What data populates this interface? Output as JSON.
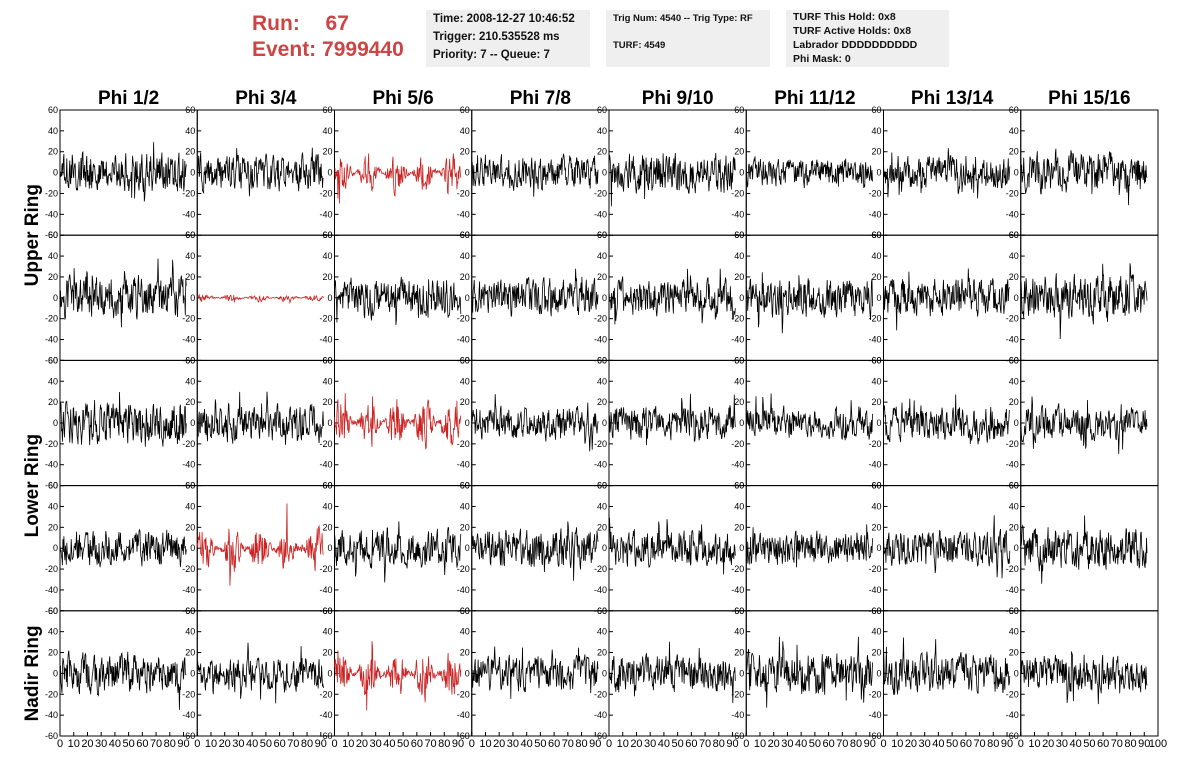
{
  "header": {
    "run_label": "Run:",
    "run_value": "67",
    "event_label": "Event:",
    "event_value": "7999440",
    "time": "Time: 2008-12-27 10:46:52",
    "trigger": "Trigger: 210.535528 ms",
    "priority": "Priority: 7 -- Queue: 7",
    "trig_num": "Trig Num: 4540 -- Trig Type: RF",
    "turf": "TURF: 4549",
    "turf_this_hold": "TURF This Hold: 0x8",
    "turf_active_holds": "TURF Active Holds: 0x8",
    "labrador": "Labrador DDDDDDDDDD",
    "phi_mask": "Phi Mask: 0"
  },
  "colors": {
    "highlight": "#cc2222",
    "trace": "#000000",
    "run_text": "#cc4444",
    "info_bg": "#efefef"
  },
  "chart_data": {
    "type": "line",
    "columns": [
      "Phi 1/2",
      "Phi 3/4",
      "Phi 5/6",
      "Phi 7/8",
      "Phi 9/10",
      "Phi 11/12",
      "Phi 13/14",
      "Phi 15/16"
    ],
    "ring_labels": [
      "Upper Ring",
      "Lower Ring",
      "Nadir Ring"
    ],
    "ring_groups": [
      {
        "label": "Upper Ring",
        "rows": [
          0,
          1
        ]
      },
      {
        "label": "Lower Ring",
        "rows": [
          2,
          3
        ]
      },
      {
        "label": "Nadir Ring",
        "rows": [
          4
        ]
      }
    ],
    "xlim": [
      0,
      100
    ],
    "ylim": [
      -60,
      60
    ],
    "yticks": [
      -60,
      -40,
      -20,
      0,
      20,
      40,
      60
    ],
    "xticks": [
      0,
      10,
      20,
      30,
      40,
      50,
      60,
      70,
      80,
      90,
      100
    ],
    "xtick_labels": [
      "0",
      "10",
      "20",
      "30",
      "40",
      "50",
      "60",
      "70",
      "80",
      "90",
      "100"
    ],
    "grid": false,
    "samples_per_panel": 260,
    "panels": [
      [
        {
          "amp": 15,
          "color": "black"
        },
        {
          "amp": 14,
          "color": "black"
        },
        {
          "amp": 16,
          "color": "red"
        },
        {
          "amp": 13,
          "color": "black"
        },
        {
          "amp": 15,
          "color": "black"
        },
        {
          "amp": 11,
          "color": "black"
        },
        {
          "amp": 12,
          "color": "black"
        },
        {
          "amp": 16,
          "color": "black"
        }
      ],
      [
        {
          "amp": 16,
          "color": "black"
        },
        {
          "amp": 3,
          "color": "red"
        },
        {
          "amp": 15,
          "color": "black"
        },
        {
          "amp": 14,
          "color": "black"
        },
        {
          "amp": 14,
          "color": "black"
        },
        {
          "amp": 15,
          "color": "black"
        },
        {
          "amp": 15,
          "color": "black"
        },
        {
          "amp": 18,
          "color": "black"
        }
      ],
      [
        {
          "amp": 17,
          "color": "black"
        },
        {
          "amp": 14,
          "color": "black"
        },
        {
          "amp": 20,
          "color": "red"
        },
        {
          "amp": 12,
          "color": "black"
        },
        {
          "amp": 13,
          "color": "black"
        },
        {
          "amp": 12,
          "color": "black"
        },
        {
          "amp": 13,
          "color": "black"
        },
        {
          "amp": 13,
          "color": "black"
        }
      ],
      [
        {
          "amp": 14,
          "color": "black"
        },
        {
          "amp": 20,
          "color": "red"
        },
        {
          "amp": 14,
          "color": "black"
        },
        {
          "amp": 15,
          "color": "black"
        },
        {
          "amp": 14,
          "color": "black"
        },
        {
          "amp": 13,
          "color": "black"
        },
        {
          "amp": 14,
          "color": "black"
        },
        {
          "amp": 17,
          "color": "black"
        }
      ],
      [
        {
          "amp": 16,
          "color": "black"
        },
        {
          "amp": 14,
          "color": "black"
        },
        {
          "amp": 20,
          "color": "red"
        },
        {
          "amp": 13,
          "color": "black"
        },
        {
          "amp": 14,
          "color": "black"
        },
        {
          "amp": 16,
          "color": "black"
        },
        {
          "amp": 15,
          "color": "black"
        },
        {
          "amp": 14,
          "color": "black"
        }
      ]
    ]
  }
}
